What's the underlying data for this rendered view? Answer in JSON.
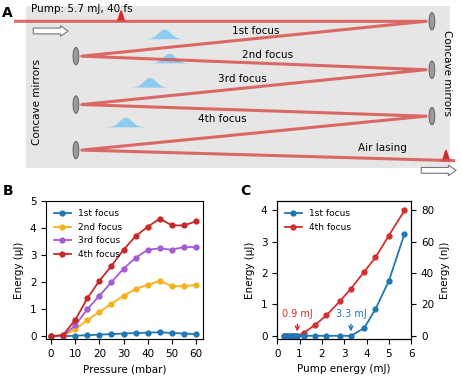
{
  "diagram": {
    "label": "A",
    "pump": "Pump: 5.7 mJ, 40 fs",
    "foci": [
      "1st focus",
      "2nd focus",
      "3rd focus",
      "4th focus"
    ],
    "mirrors": [
      "Concave mirrors",
      "Concave mirrors"
    ],
    "output": "Air lasing"
  },
  "chart_data": [
    {
      "type": "line",
      "title": "B",
      "x_label": "Pressure (mbar)",
      "y_label": "Energy (μJ)",
      "x": [
        0,
        5,
        10,
        15,
        20,
        25,
        30,
        35,
        40,
        45,
        50,
        55,
        60
      ],
      "xlim": [
        -2,
        63
      ],
      "xticks": [
        0,
        10,
        20,
        30,
        40,
        50,
        60
      ],
      "ylim": [
        -0.1,
        5
      ],
      "yticks": [
        0,
        1,
        2,
        3,
        4,
        5
      ],
      "legend": "upper left",
      "marker": "o",
      "series": [
        {
          "name": "1st focus",
          "color": "#1f77b4",
          "values": [
            0,
            0,
            0.02,
            0.04,
            0.06,
            0.08,
            0.1,
            0.12,
            0.13,
            0.15,
            0.12,
            0.1,
            0.08
          ]
        },
        {
          "name": "2nd focus",
          "color": "#f5b21a",
          "values": [
            0,
            0.01,
            0.25,
            0.6,
            0.9,
            1.2,
            1.5,
            1.75,
            1.9,
            2.05,
            1.85,
            1.85,
            1.9
          ]
        },
        {
          "name": "3rd focus",
          "color": "#a35bd6",
          "values": [
            0,
            0.02,
            0.4,
            1.0,
            1.5,
            2.0,
            2.5,
            2.9,
            3.2,
            3.25,
            3.2,
            3.3,
            3.3
          ]
        },
        {
          "name": "4th focus",
          "color": "#c62828",
          "values": [
            0,
            0.05,
            0.6,
            1.4,
            2.05,
            2.6,
            3.2,
            3.7,
            4.05,
            4.35,
            4.1,
            4.1,
            4.25
          ]
        }
      ]
    },
    {
      "type": "line",
      "title": "C",
      "x_label": "Pump energy (mJ)",
      "y_label": "Energy (μJ)",
      "y2_label": "Energy (nJ)",
      "x": [
        0.3,
        0.4,
        0.5,
        0.6,
        0.7,
        0.8,
        0.9,
        1.2,
        1.7,
        2.2,
        2.8,
        3.3,
        3.9,
        4.4,
        5.0,
        5.7
      ],
      "xlim": [
        0,
        6
      ],
      "xticks": [
        0,
        1,
        2,
        3,
        4,
        5,
        6
      ],
      "ylim": [
        -0.1,
        4.3
      ],
      "yticks": [
        0,
        1,
        2,
        3,
        4
      ],
      "y2lim": [
        -2,
        86
      ],
      "y2ticks": [
        0,
        20,
        40,
        60,
        80
      ],
      "legend": "upper left",
      "marker": "o",
      "series": [
        {
          "name": "1st focus",
          "color": "#1f77b4",
          "axis": "y2",
          "values": [
            0,
            0,
            0,
            0,
            0,
            0,
            0,
            0,
            0,
            0,
            0,
            0,
            5,
            17,
            35,
            65
          ]
        },
        {
          "name": "4th focus",
          "color": "#d32f2f",
          "values": [
            0,
            0,
            0,
            0,
            0,
            0,
            0,
            0.1,
            0.35,
            0.65,
            1.1,
            1.5,
            2.05,
            2.5,
            3.2,
            4.0
          ]
        }
      ],
      "annotations": [
        {
          "text": "0.9 mJ",
          "x": 0.9,
          "color": "#d32f2f"
        },
        {
          "text": "3.3 mJ",
          "x": 3.3,
          "color": "#1f77b4"
        }
      ]
    }
  ]
}
